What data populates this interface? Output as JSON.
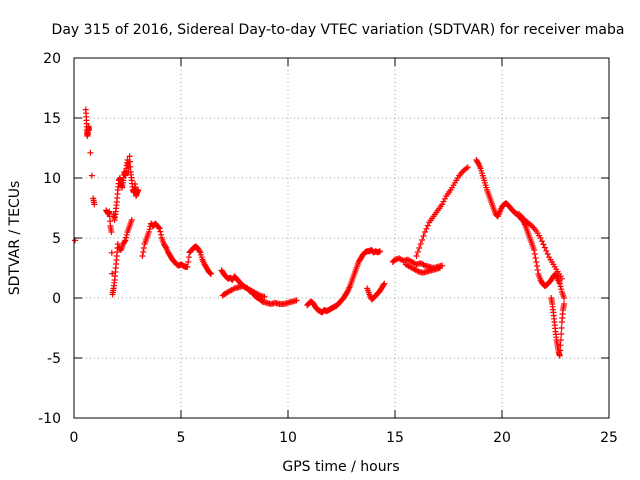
{
  "chart_data": {
    "type": "scatter",
    "title": "Day 315 of 2016, Sidereal Day-to-day VTEC variation (SDTVAR) for receiver maba",
    "xlabel": "GPS time / hours",
    "ylabel": "SDTVAR / TECUs",
    "xlim": [
      0,
      25
    ],
    "ylim": [
      -10,
      20
    ],
    "xticks": [
      0,
      5,
      10,
      15,
      20,
      25
    ],
    "yticks": [
      -10,
      -5,
      0,
      5,
      10,
      15,
      20
    ],
    "grid": true,
    "marker": "+",
    "color": "#ff0000",
    "series": [
      {
        "name": "SDTVAR",
        "x": [
          0.05,
          0.55,
          0.58,
          0.6,
          0.62,
          0.65,
          0.68,
          0.7,
          0.9,
          0.95,
          1.5,
          1.6,
          1.65,
          1.7,
          1.75,
          1.8,
          1.85,
          1.9,
          1.95,
          2.0,
          2.05,
          1.85,
          1.9,
          1.95,
          2.0,
          2.05,
          2.1,
          2.15,
          2.2,
          2.25,
          2.3,
          2.35,
          2.4,
          2.45,
          2.5,
          2.55,
          2.6,
          2.65,
          2.7,
          2.75,
          2.8,
          2.85,
          2.9,
          2.95,
          3.0,
          2.1,
          2.2,
          2.3,
          2.4,
          2.5,
          2.6,
          2.7,
          3.2,
          3.3,
          3.4,
          3.5,
          3.6,
          3.7,
          3.8,
          3.9,
          4.0,
          4.1,
          4.2,
          4.3,
          4.4,
          4.5,
          4.6,
          4.7,
          4.8,
          4.9,
          5.0,
          5.1,
          5.2,
          5.3,
          5.4,
          5.5,
          5.6,
          5.7,
          5.8,
          5.9,
          6.0,
          6.1,
          6.2,
          6.3,
          6.4,
          6.9,
          7.0,
          7.1,
          7.2,
          7.3,
          7.4,
          7.5,
          7.6,
          7.7,
          7.8,
          7.9,
          8.0,
          8.1,
          8.2,
          8.3,
          8.4,
          8.5,
          8.6,
          8.7,
          8.8,
          9.0,
          9.2,
          9.4,
          9.6,
          9.8,
          10.0,
          10.2,
          10.4,
          6.95,
          7.1,
          7.3,
          7.5,
          7.7,
          7.9,
          8.1,
          8.3,
          8.5,
          8.7,
          8.9,
          10.9,
          11.0,
          11.1,
          11.2,
          11.3,
          11.4,
          11.5,
          11.6,
          11.7,
          11.8,
          11.9,
          12.0,
          12.1,
          12.2,
          12.3,
          12.4,
          12.5,
          12.6,
          12.7,
          12.8,
          12.9,
          13.0,
          13.1,
          13.2,
          13.3,
          13.4,
          13.5,
          13.6,
          13.7,
          13.8,
          13.9,
          14.0,
          14.1,
          14.2,
          14.3,
          13.7,
          13.8,
          13.9,
          14.0,
          14.1,
          14.2,
          14.3,
          14.4,
          14.5,
          14.9,
          15.0,
          15.2,
          15.4,
          15.6,
          15.8,
          16.0,
          16.2,
          16.4,
          16.6,
          16.8,
          17.0,
          17.2,
          15.5,
          15.7,
          15.9,
          16.1,
          16.3,
          16.5,
          16.7,
          16.9,
          17.1,
          16.0,
          16.2,
          16.4,
          16.6,
          16.8,
          17.0,
          17.2,
          17.4,
          17.6,
          17.8,
          18.0,
          18.2,
          18.4,
          18.8,
          18.9,
          19.0,
          19.1,
          19.2,
          19.3,
          19.4,
          19.5,
          19.6,
          19.7,
          19.8,
          19.9,
          20.0,
          20.1,
          20.2,
          20.3,
          20.4,
          20.5,
          20.6,
          20.7,
          20.8,
          20.9,
          21.0,
          21.1,
          21.2,
          21.3,
          21.4,
          21.5,
          21.6,
          21.7,
          21.8,
          21.9,
          22.0,
          22.1,
          22.2,
          22.3,
          22.4,
          22.5,
          22.6,
          22.7,
          22.8,
          22.9,
          20.8,
          21.0,
          21.2,
          21.4,
          21.6,
          21.8,
          22.0,
          22.2,
          22.4,
          22.6,
          22.8,
          22.3,
          22.35,
          22.4,
          22.45,
          22.5,
          22.55,
          22.6,
          22.65,
          22.7,
          22.75,
          22.8,
          22.85,
          22.9
        ],
        "y": [
          4.8,
          15.7,
          14.8,
          14.0,
          13.5,
          13.8,
          14.3,
          14.0,
          8.3,
          7.8,
          7.3,
          7.0,
          7.2,
          6.0,
          5.5,
          0.3,
          0.8,
          1.5,
          2.5,
          3.5,
          4.5,
          7.0,
          6.5,
          7.2,
          8.0,
          9.0,
          9.8,
          10.0,
          9.5,
          9.2,
          9.8,
          10.5,
          10.2,
          10.8,
          11.5,
          10.5,
          11.8,
          10.5,
          9.8,
          9.0,
          8.8,
          9.5,
          8.5,
          8.8,
          9.0,
          4.2,
          4.0,
          4.5,
          4.8,
          5.5,
          6.0,
          6.5,
          3.5,
          4.5,
          5.0,
          5.5,
          6.2,
          6.0,
          6.2,
          6.0,
          5.8,
          5.0,
          4.5,
          4.2,
          3.8,
          3.5,
          3.2,
          3.0,
          2.8,
          2.7,
          2.8,
          2.7,
          2.6,
          2.6,
          3.8,
          4.0,
          4.2,
          4.3,
          4.1,
          3.8,
          3.2,
          2.8,
          2.5,
          2.2,
          2.0,
          2.3,
          2.0,
          1.8,
          1.6,
          1.7,
          1.5,
          1.8,
          1.6,
          1.4,
          1.2,
          1.0,
          0.9,
          0.8,
          0.6,
          0.5,
          0.3,
          0.1,
          0.0,
          -0.1,
          -0.3,
          -0.4,
          -0.5,
          -0.4,
          -0.5,
          -0.5,
          -0.4,
          -0.3,
          -0.2,
          0.2,
          0.4,
          0.6,
          0.8,
          0.9,
          1.0,
          0.8,
          0.6,
          0.4,
          0.2,
          0.1,
          -0.6,
          -0.4,
          -0.3,
          -0.5,
          -0.8,
          -1.0,
          -1.1,
          -1.2,
          -1.0,
          -1.1,
          -1.0,
          -0.9,
          -0.8,
          -0.7,
          -0.6,
          -0.4,
          -0.2,
          0.0,
          0.3,
          0.6,
          1.0,
          1.5,
          2.0,
          2.5,
          3.0,
          3.3,
          3.6,
          3.8,
          3.9,
          3.9,
          4.0,
          3.8,
          3.9,
          3.8,
          3.9,
          0.8,
          0.3,
          -0.1,
          0.0,
          0.2,
          0.4,
          0.6,
          0.9,
          1.2,
          3.0,
          3.2,
          3.3,
          3.1,
          3.2,
          3.0,
          2.8,
          2.9,
          2.7,
          2.6,
          2.5,
          2.6,
          2.7,
          2.8,
          2.6,
          2.4,
          2.2,
          2.1,
          2.2,
          2.3,
          2.4,
          2.5,
          3.5,
          4.5,
          5.5,
          6.3,
          6.8,
          7.3,
          7.8,
          8.5,
          9.0,
          9.6,
          10.2,
          10.6,
          10.9,
          11.5,
          11.2,
          10.8,
          10.2,
          9.6,
          9.0,
          8.5,
          8.0,
          7.5,
          7.0,
          6.8,
          7.2,
          7.6,
          7.8,
          7.9,
          7.7,
          7.5,
          7.3,
          7.1,
          7.0,
          6.8,
          6.6,
          6.4,
          6.0,
          5.5,
          5.0,
          4.5,
          4.0,
          3.0,
          2.0,
          1.5,
          1.2,
          1.0,
          1.1,
          1.3,
          1.5,
          1.8,
          2.0,
          1.6,
          1.2,
          0.5,
          0.0,
          7.0,
          6.6,
          6.3,
          6.0,
          5.6,
          5.0,
          4.2,
          3.4,
          2.8,
          2.2,
          1.6,
          0.0,
          -0.5,
          -1.2,
          -2.0,
          -2.8,
          -3.5,
          -4.0,
          -4.5,
          -4.8,
          -3.5,
          -2.0,
          -1.0,
          -0.5
        ]
      }
    ]
  }
}
